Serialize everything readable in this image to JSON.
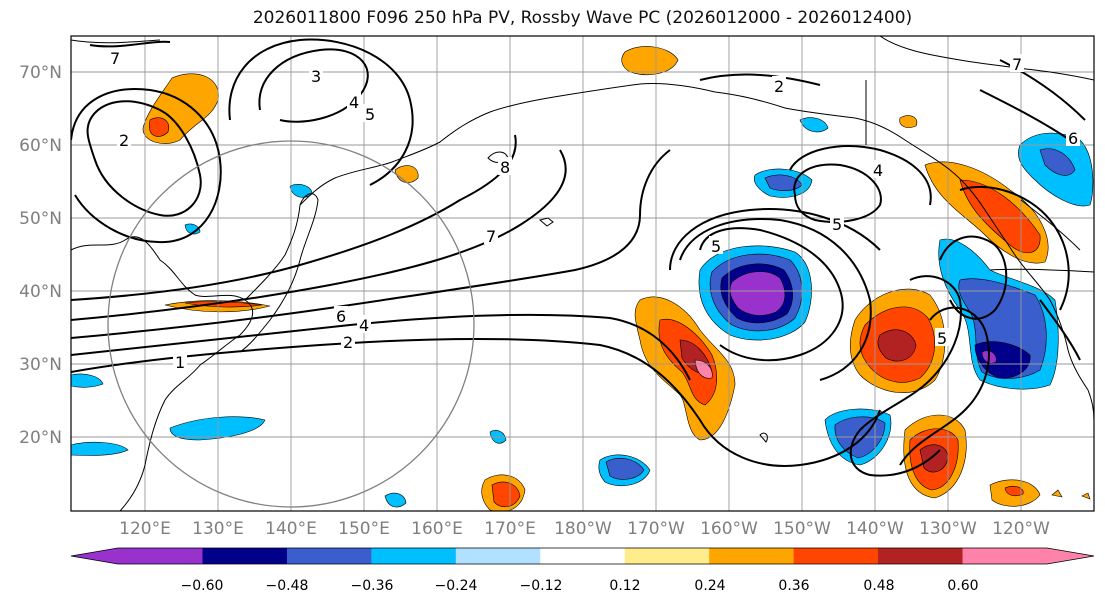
{
  "title": "2026011800 F096 250 hPa PV, Rossby Wave PC (2026012000 - 2026012400)",
  "lat_labels": [
    "70°N",
    "60°N",
    "50°N",
    "40°N",
    "30°N",
    "20°N"
  ],
  "lon_labels": [
    "120°E",
    "130°E",
    "140°E",
    "150°E",
    "160°E",
    "170°E",
    "180°W",
    "170°W",
    "160°W",
    "150°W",
    "140°W",
    "130°W",
    "120°W"
  ],
  "colorbar": {
    "ticks": [
      "−0.60",
      "−0.48",
      "−0.36",
      "−0.24",
      "−0.12",
      "0.12",
      "0.24",
      "0.36",
      "0.48",
      "0.60"
    ],
    "colors": [
      "#9932cc",
      "#00008b",
      "#3a5fcd",
      "#00bfff",
      "#b0e2ff",
      "#ffffff",
      "#ffec8b",
      "#ffa500",
      "#ff4500",
      "#b22222",
      "#ff82ab"
    ]
  },
  "contour_labels": {
    "c1": "1",
    "c2a": "2",
    "c4": "4",
    "c6": "6",
    "c7a": "7",
    "c7b": "7",
    "c3": "3",
    "c4b": "4",
    "c5": "5",
    "c5b": "5",
    "c2b": "2",
    "c4c": "4",
    "c5c": "5",
    "c8": "8",
    "c6b": "6",
    "c2c": "2",
    "c5d": "5",
    "c7c": "7"
  }
}
